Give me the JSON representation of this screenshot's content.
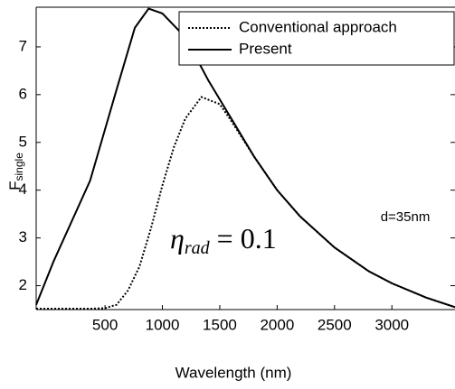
{
  "chart_data": {
    "type": "line",
    "xlabel": "Wavelength (nm)",
    "ylabel": {
      "main": "F",
      "sub": "single"
    },
    "annotations": [
      {
        "symbol": "η",
        "sub": "rad",
        "text": "= 0.1"
      },
      {
        "text": "d=35nm"
      }
    ],
    "xlim": [
      -100,
      3550
    ],
    "xticks": [
      500,
      1000,
      1500,
      2000,
      2500,
      3000
    ],
    "ylim": [
      1.5,
      7.83
    ],
    "yticks": [
      2,
      3,
      4,
      5,
      6,
      7
    ],
    "legend": "upper right",
    "series": [
      {
        "name": "Conventional approach",
        "color": "#000",
        "dash": "dotted",
        "x": [
          -100,
          200,
          400,
          500,
          600,
          700,
          800,
          900,
          1000,
          1100,
          1200,
          1340,
          1500,
          1600,
          1800,
          2000,
          2200,
          2500,
          2800,
          3000,
          3300,
          3550
        ],
        "values": [
          1.52,
          1.52,
          1.52,
          1.53,
          1.6,
          1.9,
          2.4,
          3.2,
          4.1,
          4.9,
          5.5,
          5.95,
          5.8,
          5.45,
          4.7,
          4.0,
          3.45,
          2.8,
          2.3,
          2.05,
          1.75,
          1.55
        ]
      },
      {
        "name": "Present",
        "color": "#000",
        "dash": "solid",
        "x": [
          -100,
          50,
          370,
          600,
          760,
          880,
          1000,
          1200,
          1400,
          1600,
          1800,
          2000,
          2200,
          2500,
          2800,
          3000,
          3300,
          3550
        ],
        "values": [
          1.6,
          2.5,
          4.2,
          6.1,
          7.4,
          7.8,
          7.7,
          7.2,
          6.3,
          5.5,
          4.7,
          4.0,
          3.45,
          2.8,
          2.3,
          2.05,
          1.75,
          1.55
        ]
      }
    ]
  }
}
